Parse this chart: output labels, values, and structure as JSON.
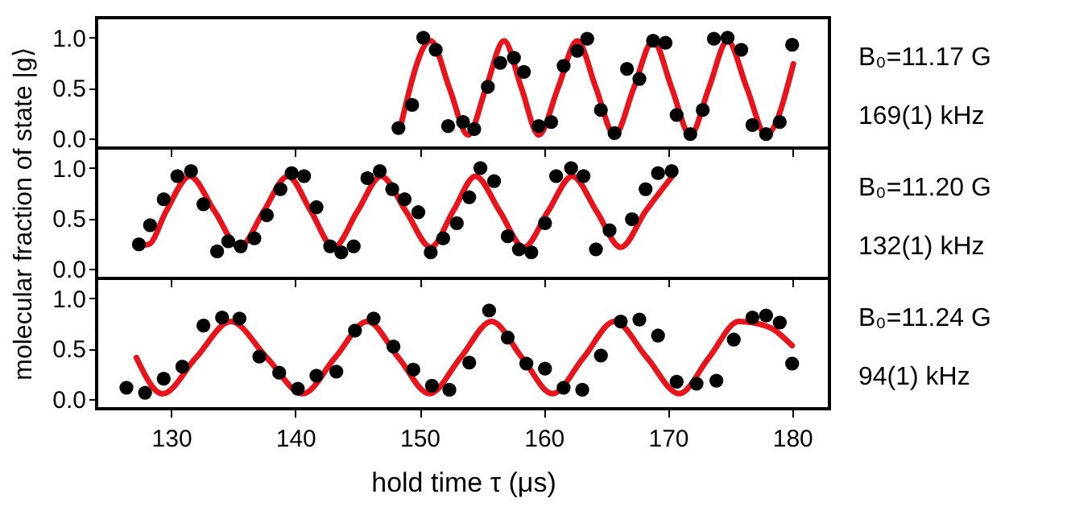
{
  "chart_data": [
    {
      "type": "scatter",
      "xlim": [
        124,
        183
      ],
      "ylim": [
        -0.1,
        1.2
      ],
      "xticks": [
        130,
        140,
        150,
        160,
        170,
        180
      ],
      "yticks": [
        {
          "value": 0,
          "label": "0.0"
        },
        {
          "value": 0.5,
          "label": "0.5"
        },
        {
          "value": 1,
          "label": "1.0"
        }
      ],
      "tick_labels": "y",
      "grid": false,
      "annotations": [
        "B₀=11.17 G",
        "169(1) kHz"
      ],
      "series": [
        {
          "marker": "circle",
          "color": "#000000",
          "x": [
            148.3,
            149.4,
            150.3,
            151.3,
            152.3,
            153.5,
            154.4,
            155.5,
            156.5,
            157.6,
            158.4,
            159.6,
            160.6,
            161.6,
            162.7,
            163.5,
            164.6,
            165.7,
            166.7,
            167.7,
            168.8,
            169.8,
            170.7,
            171.8,
            172.8,
            173.7,
            174.8,
            175.9,
            176.8,
            177.9,
            179.0,
            180.0
          ],
          "values": [
            0.1,
            0.33,
            1.0,
            0.88,
            0.12,
            0.16,
            0.09,
            0.51,
            0.75,
            0.8,
            0.66,
            0.12,
            0.16,
            0.72,
            0.87,
            0.99,
            0.28,
            0.05,
            0.69,
            0.59,
            0.97,
            0.95,
            0.23,
            0.04,
            0.28,
            0.99,
            1.0,
            0.88,
            0.13,
            0.04,
            0.16,
            0.93
          ]
        },
        {
          "type": "line",
          "marker": "none",
          "color": "#e8141c",
          "x": [
            148.5,
            150.9,
            152.4,
            153.9,
            155.35,
            156.8,
            158.2,
            159.6,
            161.15,
            162.7,
            164.2,
            165.7,
            167.25,
            168.8,
            170.3,
            171.8,
            173.3,
            174.8,
            176.35,
            177.9,
            180.1
          ],
          "values": [
            0.13,
            0.97,
            0.5,
            0.03,
            0.5,
            0.97,
            0.5,
            0.03,
            0.5,
            0.97,
            0.5,
            0.03,
            0.5,
            0.97,
            0.5,
            0.03,
            0.5,
            0.97,
            0.5,
            0.03,
            0.74
          ]
        }
      ]
    },
    {
      "type": "scatter",
      "xlim": [
        124,
        183
      ],
      "ylim": [
        -0.1,
        1.2
      ],
      "xticks": [
        130,
        140,
        150,
        160,
        170,
        180
      ],
      "yticks": [
        {
          "value": 0,
          "label": "0.0"
        },
        {
          "value": 0.5,
          "label": "0.5"
        },
        {
          "value": 1,
          "label": "1.0"
        }
      ],
      "tick_labels": "y",
      "grid": false,
      "ylabel": "molecular fraction of state |g⟩",
      "annotations": [
        "B₀=11.20 G",
        "132(1) kHz"
      ],
      "series": [
        {
          "marker": "circle",
          "color": "#000000",
          "x": [
            127.4,
            128.3,
            129.4,
            130.5,
            131.6,
            132.6,
            133.7,
            134.6,
            135.6,
            136.7,
            137.7,
            138.8,
            139.7,
            140.7,
            141.7,
            142.8,
            143.7,
            144.7,
            145.8,
            146.8,
            147.8,
            148.8,
            149.9,
            150.9,
            151.9,
            153.0,
            154.0,
            154.9,
            156.0,
            157.1,
            158.0,
            159.0,
            160.1,
            161.0,
            162.2,
            163.2,
            164.2,
            165.3,
            167.1,
            168.2,
            169.2,
            170.3
          ],
          "values": [
            0.24,
            0.43,
            0.69,
            0.92,
            0.97,
            0.64,
            0.17,
            0.27,
            0.22,
            0.3,
            0.53,
            0.79,
            0.95,
            0.92,
            0.61,
            0.22,
            0.16,
            0.22,
            0.9,
            0.97,
            0.79,
            0.69,
            0.56,
            0.16,
            0.3,
            0.45,
            0.71,
            1.0,
            0.87,
            0.32,
            0.19,
            0.16,
            0.45,
            0.92,
            1.0,
            0.92,
            0.19,
            0.38,
            0.49,
            0.79,
            0.95,
            0.97
          ]
        },
        {
          "type": "line",
          "marker": "none",
          "color": "#e8141c",
          "x": [
            127.5,
            128.2,
            129.6,
            131.5,
            133.5,
            135.5,
            137.45,
            139.4,
            141.25,
            143.1,
            145.0,
            146.9,
            148.9,
            150.9,
            152.7,
            154.5,
            156.45,
            158.4,
            160.35,
            162.3,
            164.25,
            166.2,
            168.2,
            170.3
          ],
          "values": [
            0.23,
            0.24,
            0.57,
            0.92,
            0.57,
            0.21,
            0.57,
            0.92,
            0.57,
            0.21,
            0.57,
            0.92,
            0.57,
            0.21,
            0.57,
            0.92,
            0.57,
            0.21,
            0.57,
            0.92,
            0.57,
            0.21,
            0.57,
            0.91
          ]
        }
      ]
    },
    {
      "type": "scatter",
      "xlim": [
        124,
        183
      ],
      "ylim": [
        -0.1,
        1.2
      ],
      "xticks": [
        130,
        140,
        150,
        160,
        170,
        180
      ],
      "yticks": [
        {
          "value": 0,
          "label": "0.0"
        },
        {
          "value": 0.5,
          "label": "0.5"
        },
        {
          "value": 1,
          "label": "1.0"
        }
      ],
      "grid": false,
      "xlabel": "hold time τ (μs)",
      "annotations": [
        "B₀=11.24 G",
        "94(1) kHz"
      ],
      "series": [
        {
          "marker": "circle",
          "color": "#000000",
          "x": [
            126.4,
            127.9,
            129.4,
            130.9,
            132.6,
            134.1,
            135.5,
            137.1,
            138.7,
            140.2,
            141.7,
            143.3,
            144.8,
            146.3,
            147.9,
            149.5,
            151.0,
            152.4,
            154.0,
            155.6,
            157.1,
            158.6,
            160.1,
            161.6,
            163.1,
            164.6,
            166.2,
            167.7,
            169.2,
            170.7,
            172.3,
            173.9,
            175.3,
            176.8,
            177.9,
            179.0,
            180.0
          ],
          "values": [
            0.11,
            0.06,
            0.2,
            0.32,
            0.73,
            0.81,
            0.8,
            0.42,
            0.26,
            0.1,
            0.23,
            0.27,
            0.68,
            0.8,
            0.52,
            0.29,
            0.13,
            0.09,
            0.36,
            0.88,
            0.61,
            0.35,
            0.3,
            0.11,
            0.09,
            0.43,
            0.77,
            0.79,
            0.63,
            0.17,
            0.15,
            0.18,
            0.59,
            0.81,
            0.83,
            0.76,
            0.35
          ]
        },
        {
          "type": "line",
          "marker": "none",
          "color": "#e8141c",
          "x": [
            127.2,
            129.3,
            132.0,
            134.8,
            137.7,
            140.6,
            143.2,
            145.8,
            148.3,
            150.8,
            153.3,
            155.8,
            158.25,
            160.7,
            163.2,
            165.7,
            168.3,
            170.9,
            173.3,
            175.7,
            178.0,
            180.0
          ],
          "values": [
            0.41,
            0.05,
            0.41,
            0.77,
            0.41,
            0.05,
            0.41,
            0.77,
            0.41,
            0.05,
            0.41,
            0.77,
            0.41,
            0.05,
            0.41,
            0.77,
            0.41,
            0.05,
            0.41,
            0.77,
            0.72,
            0.53
          ]
        }
      ]
    }
  ]
}
